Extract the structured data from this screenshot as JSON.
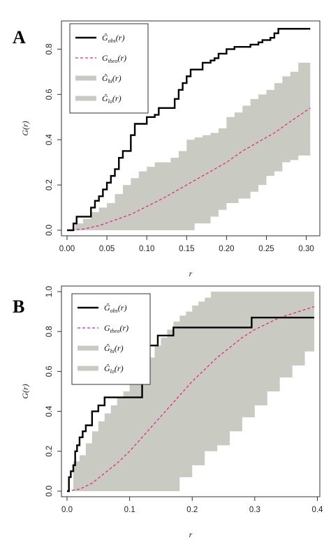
{
  "chart_data": [
    {
      "panel": "A",
      "type": "line",
      "xlabel": "r",
      "ylabel": "G(r)",
      "xlim": [
        0,
        0.31
      ],
      "ylim": [
        0,
        0.9
      ],
      "x_ticks": [
        "0.00",
        "0.05",
        "0.10",
        "0.15",
        "0.20",
        "0.25",
        "0.30"
      ],
      "y_ticks": [
        "0.0",
        "0.2",
        "0.4",
        "0.6",
        "0.8"
      ],
      "legend_position": "top-left",
      "legend": [
        {
          "base": "Ĝ",
          "sub": "obs",
          "style": "solid-black"
        },
        {
          "base": "G",
          "sub": "theo",
          "style": "dashed-pink"
        },
        {
          "base": "Ĝ",
          "sub": "hi",
          "style": "gray-band"
        },
        {
          "base": "Ĝ",
          "sub": "lo",
          "style": "gray-band"
        }
      ],
      "colors": {
        "obs": "#000000",
        "theo": "#e8287d",
        "envelope": "#c9cbc3"
      },
      "series": [
        {
          "key": "obs",
          "kind": "step",
          "x": [
            0,
            0.008,
            0.012,
            0.02,
            0.03,
            0.035,
            0.04,
            0.045,
            0.05,
            0.055,
            0.06,
            0.065,
            0.07,
            0.08,
            0.085,
            0.09,
            0.1,
            0.11,
            0.115,
            0.12,
            0.135,
            0.14,
            0.145,
            0.15,
            0.155,
            0.16,
            0.17,
            0.175,
            0.18,
            0.185,
            0.19,
            0.2,
            0.21,
            0.215,
            0.23,
            0.24,
            0.245,
            0.25,
            0.255,
            0.26,
            0.265,
            0.27,
            0.305
          ],
          "y": [
            0,
            0.03,
            0.06,
            0.06,
            0.1,
            0.13,
            0.15,
            0.18,
            0.21,
            0.24,
            0.27,
            0.32,
            0.35,
            0.42,
            0.47,
            0.47,
            0.5,
            0.51,
            0.54,
            0.54,
            0.58,
            0.62,
            0.65,
            0.68,
            0.71,
            0.71,
            0.74,
            0.74,
            0.75,
            0.76,
            0.78,
            0.8,
            0.81,
            0.81,
            0.82,
            0.83,
            0.84,
            0.84,
            0.85,
            0.87,
            0.89,
            0.89,
            0.89
          ]
        },
        {
          "key": "theo",
          "kind": "line",
          "x": [
            0,
            0.02,
            0.04,
            0.06,
            0.08,
            0.1,
            0.12,
            0.14,
            0.16,
            0.18,
            0.2,
            0.22,
            0.24,
            0.26,
            0.28,
            0.305
          ],
          "y": [
            0,
            0.005,
            0.02,
            0.045,
            0.07,
            0.105,
            0.14,
            0.18,
            0.22,
            0.26,
            0.3,
            0.35,
            0.39,
            0.43,
            0.48,
            0.54
          ]
        },
        {
          "key": "hi",
          "kind": "step",
          "x": [
            0,
            0.01,
            0.02,
            0.03,
            0.04,
            0.05,
            0.06,
            0.07,
            0.08,
            0.09,
            0.1,
            0.11,
            0.12,
            0.13,
            0.14,
            0.15,
            0.16,
            0.17,
            0.18,
            0.19,
            0.2,
            0.21,
            0.22,
            0.23,
            0.24,
            0.25,
            0.26,
            0.27,
            0.28,
            0.29,
            0.305
          ],
          "y": [
            0,
            0.03,
            0.05,
            0.08,
            0.1,
            0.12,
            0.16,
            0.2,
            0.23,
            0.26,
            0.28,
            0.3,
            0.3,
            0.32,
            0.35,
            0.4,
            0.41,
            0.42,
            0.43,
            0.45,
            0.5,
            0.52,
            0.55,
            0.58,
            0.6,
            0.62,
            0.65,
            0.68,
            0.7,
            0.74,
            0.74
          ]
        },
        {
          "key": "lo",
          "kind": "step",
          "x": [
            0,
            0.1,
            0.15,
            0.16,
            0.18,
            0.19,
            0.2,
            0.215,
            0.23,
            0.24,
            0.25,
            0.26,
            0.27,
            0.28,
            0.29,
            0.305
          ],
          "y": [
            0,
            0,
            0,
            0.03,
            0.06,
            0.09,
            0.12,
            0.14,
            0.17,
            0.2,
            0.24,
            0.26,
            0.3,
            0.31,
            0.33,
            0.33
          ]
        }
      ]
    },
    {
      "panel": "B",
      "type": "line",
      "xlabel": "r",
      "ylabel": "G(r)",
      "xlim": [
        0,
        0.395
      ],
      "ylim": [
        0,
        1.0
      ],
      "x_ticks": [
        "0.0",
        "0.1",
        "0.2",
        "0.3",
        "0.4"
      ],
      "y_ticks": [
        "0.0",
        "0.2",
        "0.4",
        "0.6",
        "0.8",
        "1.0"
      ],
      "legend_position": "top-left",
      "legend": [
        {
          "base": "Ĝ",
          "sub": "obs",
          "style": "solid-black"
        },
        {
          "base": "G",
          "sub": "theo",
          "style": "dashed-pink"
        },
        {
          "base": "Ĝ",
          "sub": "hi",
          "style": "gray-band"
        },
        {
          "base": "Ĝ",
          "sub": "lo",
          "style": "gray-band"
        }
      ],
      "colors": {
        "obs": "#000000",
        "theo": "#e8287d",
        "envelope": "#c9cbc3"
      },
      "series": [
        {
          "key": "obs",
          "kind": "step",
          "x": [
            0,
            0.003,
            0.006,
            0.01,
            0.013,
            0.016,
            0.02,
            0.025,
            0.03,
            0.035,
            0.04,
            0.05,
            0.06,
            0.11,
            0.12,
            0.125,
            0.13,
            0.14,
            0.145,
            0.16,
            0.17,
            0.29,
            0.295,
            0.395
          ],
          "y": [
            0,
            0.07,
            0.1,
            0.13,
            0.2,
            0.23,
            0.27,
            0.3,
            0.33,
            0.33,
            0.4,
            0.43,
            0.47,
            0.47,
            0.6,
            0.67,
            0.73,
            0.73,
            0.78,
            0.78,
            0.82,
            0.82,
            0.87,
            0.87
          ]
        },
        {
          "key": "theo",
          "kind": "line",
          "x": [
            0,
            0.02,
            0.04,
            0.06,
            0.08,
            0.1,
            0.12,
            0.14,
            0.16,
            0.18,
            0.2,
            0.22,
            0.24,
            0.26,
            0.28,
            0.3,
            0.32,
            0.34,
            0.36,
            0.38,
            0.395
          ],
          "y": [
            0,
            0.01,
            0.04,
            0.09,
            0.14,
            0.2,
            0.27,
            0.34,
            0.41,
            0.48,
            0.55,
            0.61,
            0.67,
            0.72,
            0.77,
            0.81,
            0.84,
            0.87,
            0.89,
            0.91,
            0.925
          ]
        },
        {
          "key": "hi",
          "kind": "step",
          "x": [
            0,
            0.01,
            0.02,
            0.03,
            0.04,
            0.05,
            0.06,
            0.07,
            0.08,
            0.09,
            0.1,
            0.11,
            0.12,
            0.13,
            0.14,
            0.15,
            0.16,
            0.17,
            0.18,
            0.19,
            0.2,
            0.21,
            0.22,
            0.23,
            0.24,
            0.25,
            0.26,
            0.395
          ],
          "y": [
            0,
            0.15,
            0.18,
            0.24,
            0.3,
            0.35,
            0.39,
            0.43,
            0.47,
            0.5,
            0.55,
            0.6,
            0.63,
            0.67,
            0.73,
            0.77,
            0.81,
            0.85,
            0.88,
            0.9,
            0.93,
            0.95,
            0.97,
            1.0,
            1.0,
            1.0,
            1.0,
            1.0
          ]
        },
        {
          "key": "lo",
          "kind": "step",
          "x": [
            0,
            0.17,
            0.18,
            0.2,
            0.22,
            0.24,
            0.26,
            0.28,
            0.3,
            0.32,
            0.34,
            0.36,
            0.38,
            0.395
          ],
          "y": [
            0,
            0,
            0.07,
            0.13,
            0.2,
            0.23,
            0.3,
            0.37,
            0.43,
            0.5,
            0.57,
            0.63,
            0.7,
            0.7
          ]
        }
      ]
    }
  ]
}
